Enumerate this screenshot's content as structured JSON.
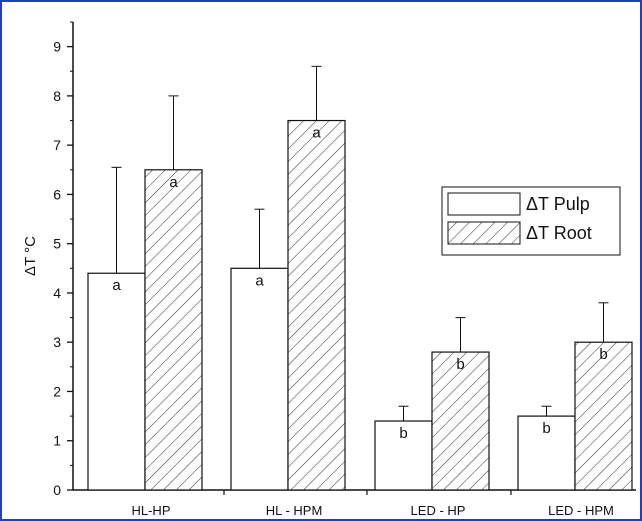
{
  "chart_data": {
    "type": "bar",
    "ylabel": "ΔT °C",
    "xlabel": "",
    "ylim": [
      0,
      9.5
    ],
    "yticks": [
      0,
      1,
      2,
      3,
      4,
      5,
      6,
      7,
      8,
      9
    ],
    "categories": [
      "HL-HP",
      "HL - HPM",
      "LED - HP",
      "LED - HPM"
    ],
    "series": [
      {
        "name": "ΔT Pulp",
        "pattern": "open",
        "values": [
          4.4,
          4.5,
          1.4,
          1.5
        ],
        "error": [
          2.15,
          1.2,
          0.3,
          0.2
        ],
        "labels": [
          "a",
          "a",
          "b",
          "b"
        ]
      },
      {
        "name": "ΔT Root",
        "pattern": "diagonal-hatch",
        "values": [
          6.5,
          7.5,
          2.8,
          3.0
        ],
        "error": [
          1.5,
          1.1,
          0.7,
          0.8
        ],
        "labels": [
          "a",
          "a",
          "b",
          "b"
        ]
      }
    ],
    "legend_position": "right-middle",
    "grid": false,
    "colors": {
      "bar_stroke": "#111111",
      "bar_fill": "#ffffff",
      "hatch": "#333333",
      "frame": "#1f3fbf"
    }
  }
}
